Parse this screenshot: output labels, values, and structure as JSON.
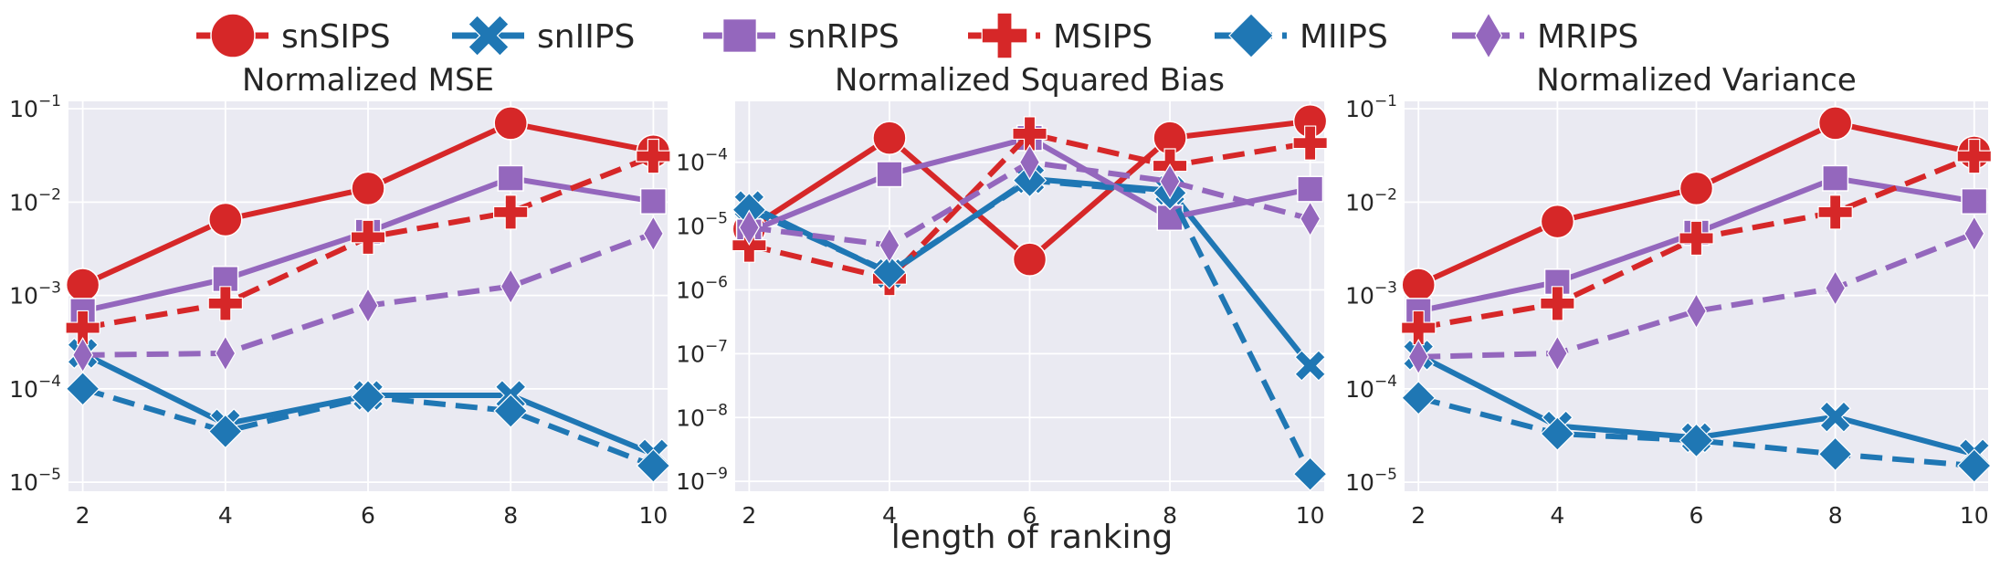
{
  "figure": {
    "xlabel": "length of ranking"
  },
  "legend": {
    "placement": "top-center",
    "entries": [
      {
        "name": "snSIPS",
        "color": "#d62728",
        "marker": "circle",
        "dash": "solid"
      },
      {
        "name": "snIIPS",
        "color": "#1f77b4",
        "marker": "x",
        "dash": "solid"
      },
      {
        "name": "snRIPS",
        "color": "#9467bd",
        "marker": "square",
        "dash": "solid"
      },
      {
        "name": "MSIPS",
        "color": "#d62728",
        "marker": "plus",
        "dash": "dashed"
      },
      {
        "name": "MIIPS",
        "color": "#1f77b4",
        "marker": "diamond",
        "dash": "dashed"
      },
      {
        "name": "MRIPS",
        "color": "#9467bd",
        "marker": "thin-diamond",
        "dash": "dashed"
      }
    ]
  },
  "chart_data": [
    {
      "type": "line",
      "title": "Normalized MSE",
      "yscale": "log",
      "ylim": [
        8e-06,
        0.12
      ],
      "yticks": [
        {
          "base": "10",
          "exp": "−5",
          "value": 1e-05
        },
        {
          "base": "10",
          "exp": "−4",
          "value": 0.0001
        },
        {
          "base": "10",
          "exp": "−3",
          "value": 0.001
        },
        {
          "base": "10",
          "exp": "−2",
          "value": 0.01
        },
        {
          "base": "10",
          "exp": "−1",
          "value": 0.1
        }
      ],
      "x": [
        2,
        4,
        6,
        8,
        10
      ],
      "xticks": [
        "2",
        "4",
        "6",
        "8",
        "10"
      ],
      "xlim": [
        1.8,
        10.2
      ],
      "grid": true,
      "series": [
        {
          "name": "snSIPS",
          "values": [
            0.0013,
            0.0065,
            0.014,
            0.07,
            0.035
          ]
        },
        {
          "name": "snIIPS",
          "values": [
            0.00024,
            4.2e-05,
            8.5e-05,
            8.5e-05,
            2e-05
          ]
        },
        {
          "name": "snRIPS",
          "values": [
            0.00068,
            0.0015,
            0.0048,
            0.018,
            0.0102
          ]
        },
        {
          "name": "MSIPS",
          "values": [
            0.00045,
            0.00082,
            0.0042,
            0.0078,
            0.031
          ]
        },
        {
          "name": "MIIPS",
          "values": [
            0.0001,
            3.5e-05,
            8.2e-05,
            5.8e-05,
            1.5e-05
          ]
        },
        {
          "name": "MRIPS",
          "values": [
            0.00023,
            0.00024,
            0.00078,
            0.00125,
            0.0046
          ]
        }
      ]
    },
    {
      "type": "line",
      "title": "Normalized Squared Bias",
      "yscale": "log",
      "ylim": [
        7e-10,
        0.0009
      ],
      "yticks": [
        {
          "base": "10",
          "exp": "−9",
          "value": 1e-09
        },
        {
          "base": "10",
          "exp": "−8",
          "value": 1e-08
        },
        {
          "base": "10",
          "exp": "−7",
          "value": 1e-07
        },
        {
          "base": "10",
          "exp": "−6",
          "value": 1e-06
        },
        {
          "base": "10",
          "exp": "−5",
          "value": 1e-05
        },
        {
          "base": "10",
          "exp": "−4",
          "value": 0.0001
        }
      ],
      "x": [
        2,
        4,
        6,
        8,
        10
      ],
      "xticks": [
        "2",
        "4",
        "6",
        "8",
        "10"
      ],
      "xlim": [
        1.8,
        10.2
      ],
      "grid": true,
      "series": [
        {
          "name": "snSIPS",
          "values": [
            9e-06,
            0.00024,
            3e-06,
            0.00024,
            0.00044
          ]
        },
        {
          "name": "snIIPS",
          "values": [
            2.1e-05,
            1.8e-06,
            5.5e-05,
            3.6e-05,
            6.5e-08
          ]
        },
        {
          "name": "snRIPS",
          "values": [
            8.2e-06,
            6.5e-05,
            0.00024,
            1.35e-05,
            3.8e-05
          ]
        },
        {
          "name": "MSIPS",
          "values": [
            5e-06,
            1.5e-06,
            0.00028,
            8.8e-05,
            0.0002
          ]
        },
        {
          "name": "MIIPS",
          "values": [
            1.8e-05,
            1.9e-06,
            5.2e-05,
            3.3e-05,
            1.3e-09
          ]
        },
        {
          "name": "MRIPS",
          "values": [
            9.5e-06,
            5e-06,
            0.0001,
            5e-05,
            1.3e-05
          ]
        }
      ]
    },
    {
      "type": "line",
      "title": "Normalized Variance",
      "yscale": "log",
      "ylim": [
        8e-06,
        0.12
      ],
      "yticks": [
        {
          "base": "10",
          "exp": "−5",
          "value": 1e-05
        },
        {
          "base": "10",
          "exp": "−4",
          "value": 0.0001
        },
        {
          "base": "10",
          "exp": "−3",
          "value": 0.001
        },
        {
          "base": "10",
          "exp": "−2",
          "value": 0.01
        },
        {
          "base": "10",
          "exp": "−1",
          "value": 0.1
        }
      ],
      "x": [
        2,
        4,
        6,
        8,
        10
      ],
      "xticks": [
        "2",
        "4",
        "6",
        "8",
        "10"
      ],
      "xlim": [
        1.8,
        10.2
      ],
      "grid": true,
      "series": [
        {
          "name": "snSIPS",
          "values": [
            0.0013,
            0.0062,
            0.014,
            0.07,
            0.034
          ]
        },
        {
          "name": "snIIPS",
          "values": [
            0.00023,
            4e-05,
            3e-05,
            5e-05,
            2e-05
          ]
        },
        {
          "name": "snRIPS",
          "values": [
            0.00068,
            0.0014,
            0.0047,
            0.018,
            0.0102
          ]
        },
        {
          "name": "MSIPS",
          "values": [
            0.00045,
            0.00082,
            0.0041,
            0.0078,
            0.031
          ]
        },
        {
          "name": "MIIPS",
          "values": [
            8e-05,
            3.3e-05,
            2.8e-05,
            2e-05,
            1.5e-05
          ]
        },
        {
          "name": "MRIPS",
          "values": [
            0.00022,
            0.00024,
            0.00068,
            0.0012,
            0.0046
          ]
        }
      ]
    }
  ]
}
